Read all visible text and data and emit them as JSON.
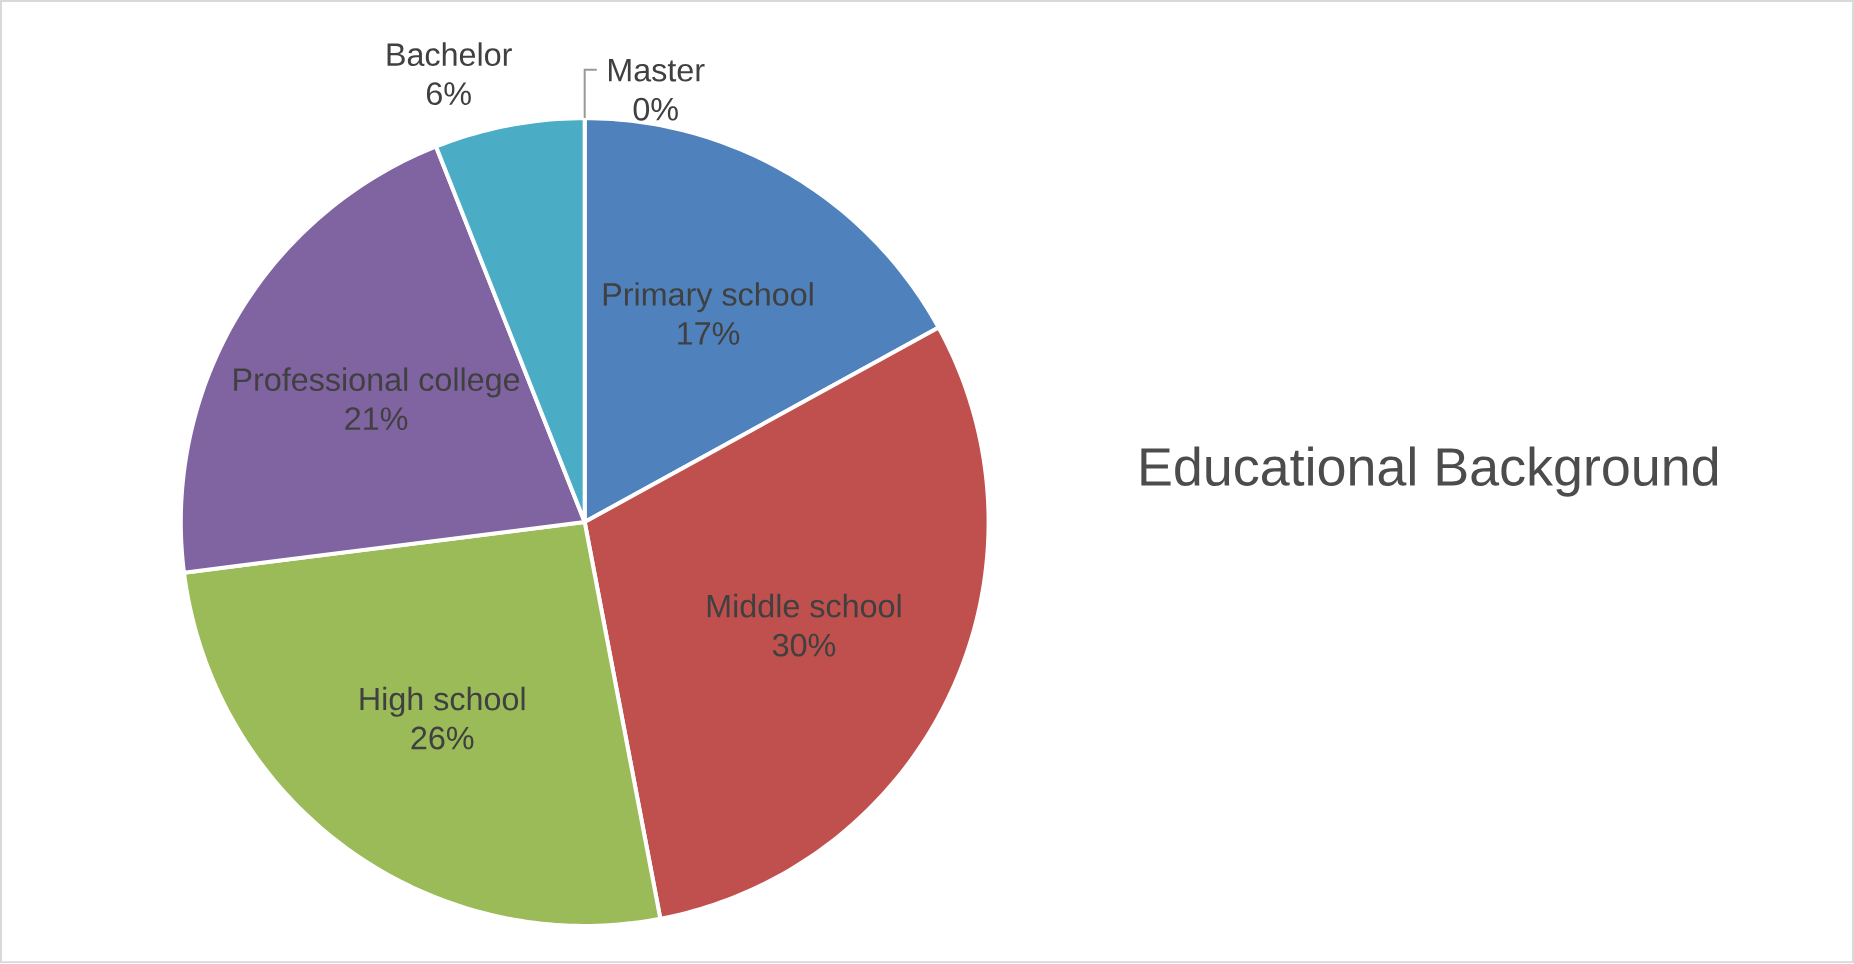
{
  "chart_data": {
    "type": "pie",
    "title": "Educational Background",
    "categories": [
      "Primary school",
      "Middle school",
      "High school",
      "Professional college",
      "Bachelor",
      "Master"
    ],
    "values": [
      17,
      30,
      26,
      21,
      6,
      0
    ],
    "value_labels": [
      "17%",
      "30%",
      "26%",
      "21%",
      "6%",
      "0%"
    ],
    "colors": [
      "#4f81bd",
      "#c0504d",
      "#9bbb59",
      "#8064a2",
      "#4bacc6",
      "#f79646"
    ]
  }
}
